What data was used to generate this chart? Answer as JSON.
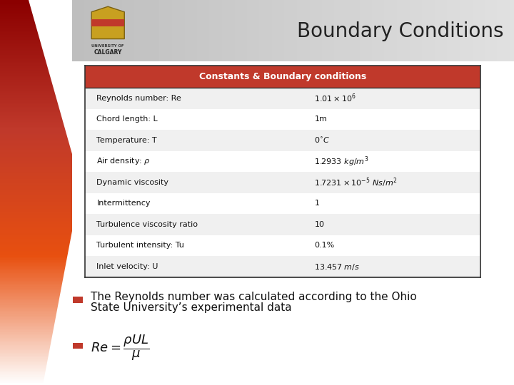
{
  "title": "Boundary Conditions",
  "header": "Constants & Boundary conditions",
  "header_bg": "#c0392b",
  "header_text_color": "#ffffff",
  "rows": [
    {
      "label": "Reynolds number: Re",
      "value": "$1.01 \\times 10^{6}$",
      "bg": "#f0f0f0",
      "italic": false
    },
    {
      "label": "Chord length: L",
      "value": "1m",
      "bg": "#ffffff",
      "italic": false
    },
    {
      "label": "Temperature: T",
      "value": "$0^{\\circ}C$",
      "bg": "#f0f0f0",
      "italic": false
    },
    {
      "label": "Air density: $\\rho$",
      "value": "$1.2933\\ kg/m^{3}$",
      "bg": "#ffffff",
      "italic": true
    },
    {
      "label": "Dynamic viscosity",
      "value": "$1.7231 \\times 10^{-5}\\ Ns/m^{2}$",
      "bg": "#f0f0f0",
      "italic": false
    },
    {
      "label": "Intermittency",
      "value": "1",
      "bg": "#ffffff",
      "italic": false
    },
    {
      "label": "Turbulence viscosity ratio",
      "value": "10",
      "bg": "#f0f0f0",
      "italic": false
    },
    {
      "label": "Turbulent intensity: Tu",
      "value": "0.1%",
      "bg": "#ffffff",
      "italic": false
    },
    {
      "label": "Inlet velocity: U",
      "value": "$13.457\\ m/s$",
      "bg": "#f0f0f0",
      "italic": false
    }
  ],
  "bullet_color": "#c0392b",
  "bullet_text1": "The Reynolds number was calculated according to the Ohio",
  "bullet_text2": "State University’s experimental data",
  "formula": "$Re = \\dfrac{\\rho UL}{\\mu}$",
  "bg_color": "#ffffff",
  "table_border_color": "#333333",
  "title_fontsize": 20,
  "header_fontsize": 9,
  "row_fontsize": 8,
  "bullet_fontsize": 11,
  "formula_fontsize": 13
}
